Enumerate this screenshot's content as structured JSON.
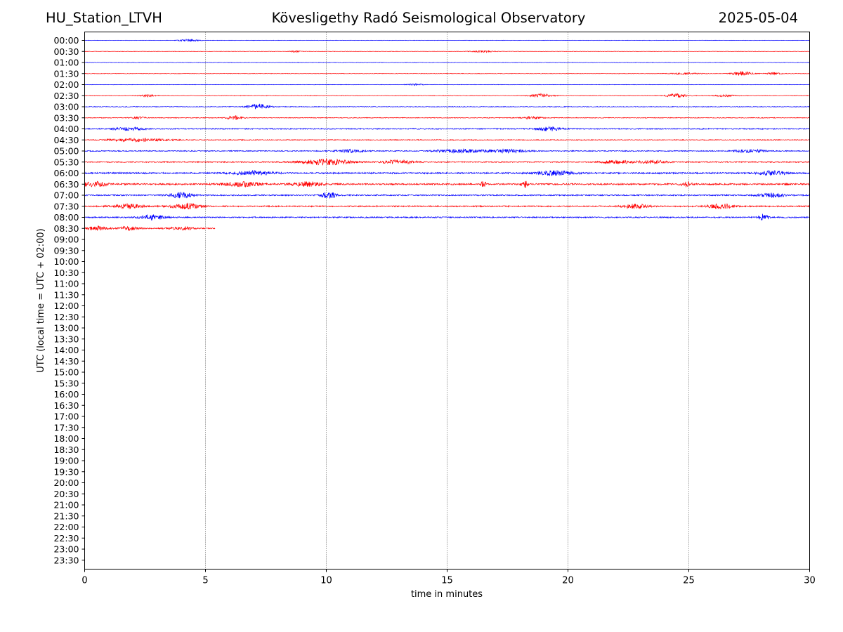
{
  "header": {
    "station": "HU_Station_LTVH",
    "observatory": "Kövesligethy Radó Seismological Observatory",
    "date": "2025-05-04"
  },
  "chart_data": {
    "type": "line",
    "title": "Kövesligethy Radó Seismological Observatory",
    "xlabel": "time in minutes",
    "ylabel": "UTC (local time = UTC + 02:00)",
    "xlim": [
      0,
      30
    ],
    "x_ticks": [
      "0",
      "5",
      "10",
      "15",
      "20",
      "25",
      "30"
    ],
    "grid": "vertical dotted lines at 5, 10, 15, 20, 25 minutes",
    "y_ticks": [
      "00:00",
      "00:30",
      "01:00",
      "01:30",
      "02:00",
      "02:30",
      "03:00",
      "03:30",
      "04:00",
      "04:30",
      "05:00",
      "05:30",
      "06:00",
      "06:30",
      "07:00",
      "07:30",
      "08:00",
      "08:30",
      "09:00",
      "09:30",
      "10:00",
      "10:30",
      "11:00",
      "11:30",
      "12:00",
      "12:30",
      "13:00",
      "13:30",
      "14:00",
      "14:30",
      "15:00",
      "15:30",
      "16:00",
      "16:30",
      "17:00",
      "17:30",
      "18:00",
      "18:30",
      "19:00",
      "19:30",
      "20:00",
      "20:30",
      "21:00",
      "21:30",
      "22:00",
      "22:30",
      "23:00",
      "23:30"
    ],
    "colors": {
      "even_rows": "#0000ff",
      "odd_rows": "#ff0000"
    },
    "traces": [
      {
        "row": "00:00",
        "end_min": 30,
        "noise": 0.5,
        "bursts": [
          {
            "t": 4.3,
            "a": 1.6,
            "w": 0.4
          }
        ]
      },
      {
        "row": "00:30",
        "end_min": 30,
        "noise": 0.5,
        "bursts": [
          {
            "t": 8.7,
            "a": 1.2,
            "w": 0.2
          },
          {
            "t": 16.5,
            "a": 1.2,
            "w": 0.5
          }
        ]
      },
      {
        "row": "01:00",
        "end_min": 30,
        "noise": 0.6,
        "bursts": []
      },
      {
        "row": "01:30",
        "end_min": 30,
        "noise": 0.6,
        "bursts": [
          {
            "t": 24.8,
            "a": 1.2,
            "w": 0.6
          },
          {
            "t": 27.2,
            "a": 3.2,
            "w": 0.4
          },
          {
            "t": 28.5,
            "a": 1.5,
            "w": 0.3
          }
        ]
      },
      {
        "row": "02:00",
        "end_min": 30,
        "noise": 0.5,
        "bursts": [
          {
            "t": 13.7,
            "a": 1.1,
            "w": 0.3
          }
        ]
      },
      {
        "row": "02:30",
        "end_min": 30,
        "noise": 0.7,
        "bursts": [
          {
            "t": 2.6,
            "a": 1.5,
            "w": 0.3
          },
          {
            "t": 18.9,
            "a": 2.8,
            "w": 0.4
          },
          {
            "t": 24.5,
            "a": 2.6,
            "w": 0.4
          },
          {
            "t": 26.5,
            "a": 1.4,
            "w": 0.4
          }
        ]
      },
      {
        "row": "03:00",
        "end_min": 30,
        "noise": 0.9,
        "bursts": [
          {
            "t": 7.2,
            "a": 3.8,
            "w": 0.4
          }
        ]
      },
      {
        "row": "03:30",
        "end_min": 30,
        "noise": 0.9,
        "bursts": [
          {
            "t": 2.2,
            "a": 1.6,
            "w": 0.3
          },
          {
            "t": 6.2,
            "a": 3.2,
            "w": 0.3
          },
          {
            "t": 18.5,
            "a": 1.6,
            "w": 0.4
          }
        ]
      },
      {
        "row": "04:00",
        "end_min": 30,
        "noise": 1.3,
        "bursts": [
          {
            "t": 1.8,
            "a": 1.8,
            "w": 0.7
          },
          {
            "t": 19.2,
            "a": 3.0,
            "w": 0.5
          }
        ]
      },
      {
        "row": "04:30",
        "end_min": 30,
        "noise": 1.2,
        "bursts": [
          {
            "t": 2.2,
            "a": 2.0,
            "w": 1.2
          }
        ]
      },
      {
        "row": "05:00",
        "end_min": 30,
        "noise": 1.2,
        "bursts": [
          {
            "t": 11.0,
            "a": 1.8,
            "w": 0.6
          },
          {
            "t": 15.5,
            "a": 2.4,
            "w": 1.0
          },
          {
            "t": 17.5,
            "a": 2.4,
            "w": 0.8
          },
          {
            "t": 27.5,
            "a": 2.2,
            "w": 0.6
          }
        ]
      },
      {
        "row": "05:30",
        "end_min": 30,
        "noise": 1.3,
        "bursts": [
          {
            "t": 10.0,
            "a": 4.0,
            "w": 1.0
          },
          {
            "t": 13.0,
            "a": 2.6,
            "w": 0.7
          },
          {
            "t": 22.0,
            "a": 2.4,
            "w": 0.6
          },
          {
            "t": 23.5,
            "a": 2.2,
            "w": 0.6
          }
        ]
      },
      {
        "row": "06:00",
        "end_min": 30,
        "noise": 2.0,
        "bursts": [
          {
            "t": 7.0,
            "a": 2.6,
            "w": 0.8
          },
          {
            "t": 19.5,
            "a": 3.2,
            "w": 0.7
          },
          {
            "t": 28.5,
            "a": 3.0,
            "w": 0.6
          }
        ]
      },
      {
        "row": "06:30",
        "end_min": 30,
        "noise": 2.0,
        "bursts": [
          {
            "t": 0.4,
            "a": 3.5,
            "w": 0.5
          },
          {
            "t": 6.5,
            "a": 3.0,
            "w": 0.8
          },
          {
            "t": 9.2,
            "a": 3.2,
            "w": 0.6
          },
          {
            "t": 16.5,
            "a": 5.0,
            "w": 0.1
          },
          {
            "t": 18.2,
            "a": 6.0,
            "w": 0.12
          },
          {
            "t": 24.9,
            "a": 3.4,
            "w": 0.2
          }
        ]
      },
      {
        "row": "07:00",
        "end_min": 30,
        "noise": 1.6,
        "bursts": [
          {
            "t": 4.0,
            "a": 3.8,
            "w": 0.5
          },
          {
            "t": 10.1,
            "a": 4.5,
            "w": 0.3
          },
          {
            "t": 28.5,
            "a": 2.8,
            "w": 0.6
          }
        ]
      },
      {
        "row": "07:30",
        "end_min": 30,
        "noise": 1.6,
        "bursts": [
          {
            "t": 1.8,
            "a": 3.2,
            "w": 0.6
          },
          {
            "t": 4.2,
            "a": 4.2,
            "w": 0.6
          },
          {
            "t": 22.8,
            "a": 3.2,
            "w": 0.5
          },
          {
            "t": 26.3,
            "a": 3.5,
            "w": 0.5
          }
        ]
      },
      {
        "row": "08:00",
        "end_min": 30,
        "noise": 1.6,
        "bursts": [
          {
            "t": 2.8,
            "a": 3.4,
            "w": 0.5
          },
          {
            "t": 28.1,
            "a": 4.4,
            "w": 0.2
          }
        ]
      },
      {
        "row": "08:30",
        "end_min": 5.4,
        "noise": 1.5,
        "bursts": [
          {
            "t": 0.5,
            "a": 2.6,
            "w": 0.4
          },
          {
            "t": 1.8,
            "a": 2.4,
            "w": 0.4
          },
          {
            "t": 4.0,
            "a": 2.0,
            "w": 0.5
          }
        ]
      }
    ]
  }
}
